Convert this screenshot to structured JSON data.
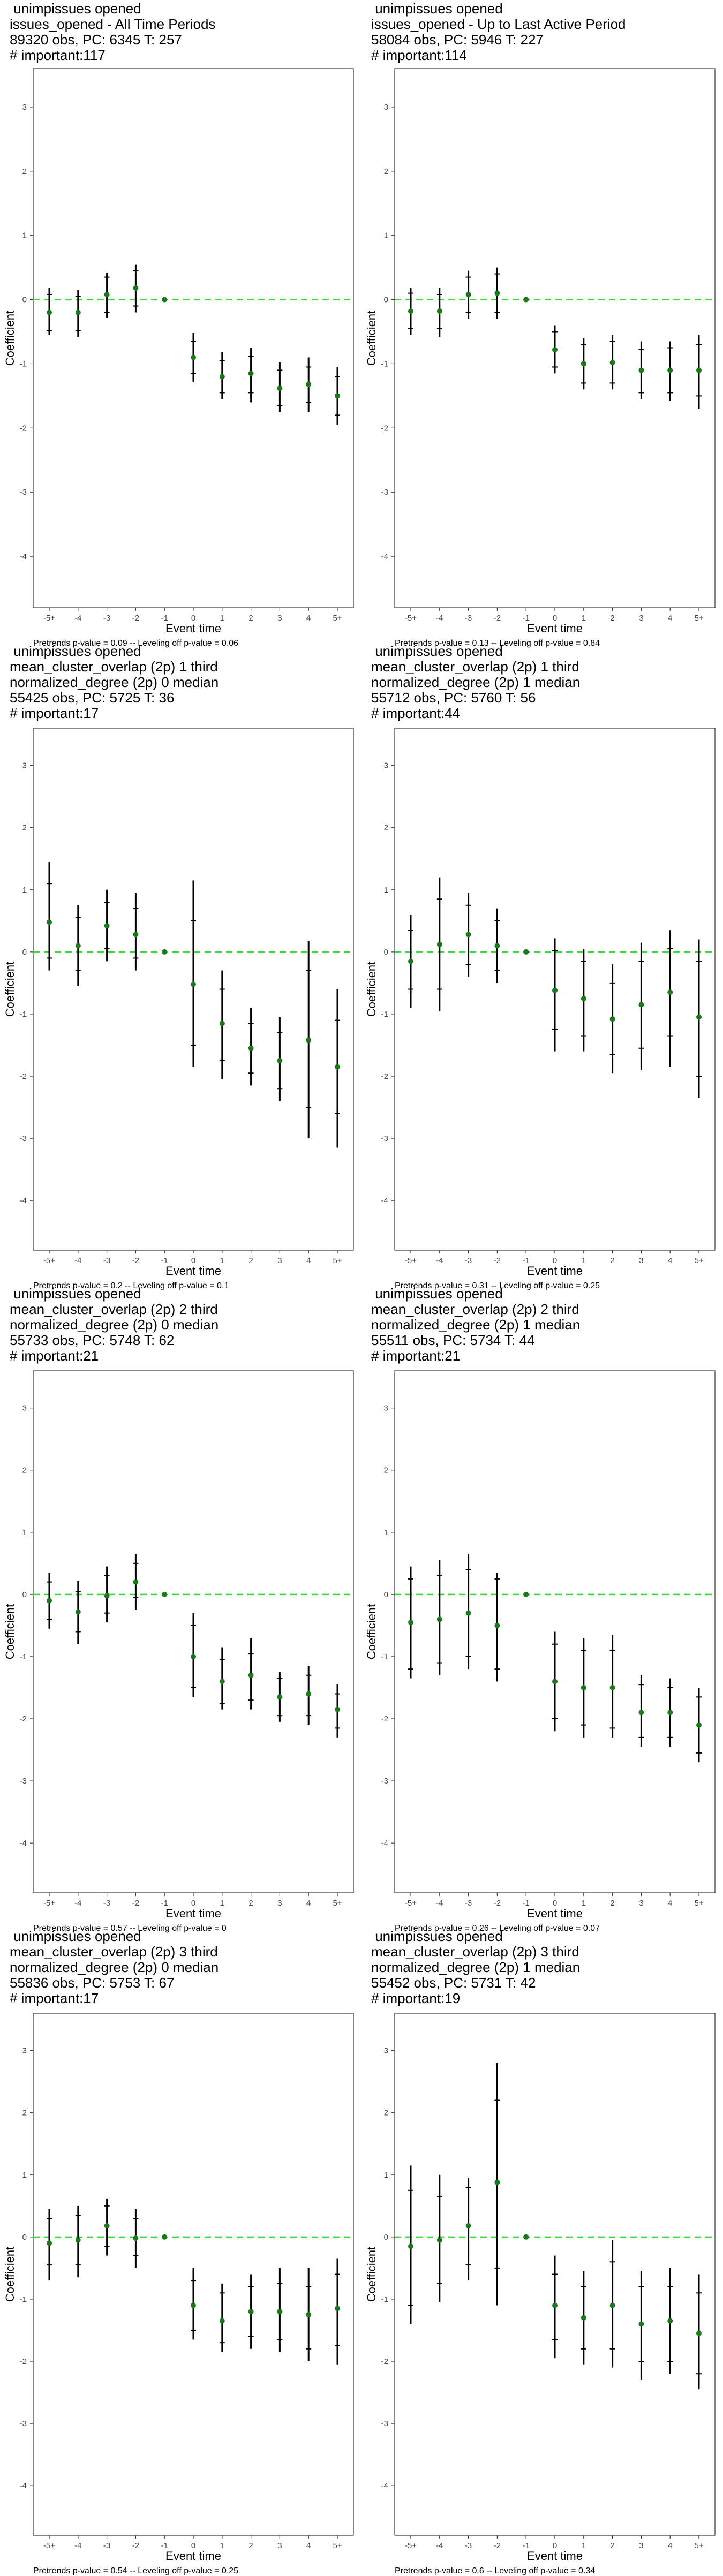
{
  "y_axis_label": "Coefficient",
  "x_axis_label": "Event time",
  "x_tick_labels": [
    "-5+",
    "-4",
    "-3",
    "-2",
    "-1",
    "0",
    "1",
    "2",
    "3",
    "4",
    "5+"
  ],
  "y_tick_labels": [
    "-4",
    "-3",
    "-2",
    "-1",
    "0",
    "1",
    "2",
    "3"
  ],
  "colors": {
    "point": "#1a7a1a",
    "reference_line": "#33dd33",
    "error_bar": "#000000",
    "frame": "#333333"
  },
  "chart_data": [
    {
      "type": "scatter",
      "title_lines": [
        " unimpissues opened",
        "issues_opened - All Time Periods",
        "89320 obs, PC: 6345 T: 257",
        "# important:117"
      ],
      "caption": "Pretrends p-value = 0.09 -- Leveling off p-value = 0.06",
      "xlabel": "Event time",
      "ylabel": "Coefficient",
      "ylim": [
        -4.8,
        3.6
      ],
      "categories": [
        "-5+",
        "-4",
        "-3",
        "-2",
        "-1",
        "0",
        "1",
        "2",
        "3",
        "4",
        "5+"
      ],
      "values": [
        -0.2,
        -0.2,
        0.08,
        0.18,
        0,
        -0.9,
        -1.2,
        -1.15,
        -1.38,
        -1.32,
        -1.5
      ],
      "ci_inner": [
        [
          -0.48,
          0.08
        ],
        [
          -0.48,
          0.05
        ],
        [
          -0.2,
          0.35
        ],
        [
          -0.1,
          0.45
        ],
        [
          0,
          0
        ],
        [
          -1.15,
          -0.65
        ],
        [
          -1.45,
          -0.95
        ],
        [
          -1.45,
          -0.88
        ],
        [
          -1.65,
          -1.1
        ],
        [
          -1.6,
          -1.05
        ],
        [
          -1.8,
          -1.2
        ]
      ],
      "ci_outer": [
        [
          -0.55,
          0.18
        ],
        [
          -0.58,
          0.15
        ],
        [
          -0.28,
          0.42
        ],
        [
          -0.2,
          0.55
        ],
        [
          0,
          0
        ],
        [
          -1.28,
          -0.52
        ],
        [
          -1.55,
          -0.82
        ],
        [
          -1.6,
          -0.75
        ],
        [
          -1.75,
          -0.98
        ],
        [
          -1.75,
          -0.9
        ],
        [
          -1.95,
          -1.05
        ]
      ]
    },
    {
      "type": "scatter",
      "title_lines": [
        " unimpissues opened",
        "issues_opened - Up to Last Active Period",
        "58084 obs, PC: 5946 T: 227",
        "# important:114"
      ],
      "caption": "Pretrends p-value = 0.13 -- Leveling off p-value = 0.84",
      "xlabel": "Event time",
      "ylabel": "Coefficient",
      "ylim": [
        -4.8,
        3.6
      ],
      "categories": [
        "-5+",
        "-4",
        "-3",
        "-2",
        "-1",
        "0",
        "1",
        "2",
        "3",
        "4",
        "5+"
      ],
      "values": [
        -0.18,
        -0.18,
        0.08,
        0.1,
        0,
        -0.78,
        -1.0,
        -0.98,
        -1.1,
        -1.1,
        -1.1
      ],
      "ci_inner": [
        [
          -0.45,
          0.1
        ],
        [
          -0.45,
          0.08
        ],
        [
          -0.2,
          0.35
        ],
        [
          -0.2,
          0.4
        ],
        [
          0,
          0
        ],
        [
          -1.05,
          -0.5
        ],
        [
          -1.3,
          -0.7
        ],
        [
          -1.3,
          -0.65
        ],
        [
          -1.45,
          -0.78
        ],
        [
          -1.45,
          -0.75
        ],
        [
          -1.5,
          -0.7
        ]
      ],
      "ci_outer": [
        [
          -0.55,
          0.18
        ],
        [
          -0.58,
          0.18
        ],
        [
          -0.3,
          0.45
        ],
        [
          -0.3,
          0.5
        ],
        [
          0,
          0
        ],
        [
          -1.15,
          -0.4
        ],
        [
          -1.4,
          -0.6
        ],
        [
          -1.4,
          -0.55
        ],
        [
          -1.55,
          -0.65
        ],
        [
          -1.58,
          -0.65
        ],
        [
          -1.7,
          -0.55
        ]
      ]
    },
    {
      "type": "scatter",
      "title_lines": [
        " unimpissues opened",
        "mean_cluster_overlap (2p) 1 third",
        "normalized_degree (2p) 0 median",
        "55425 obs, PC: 5725 T: 36",
        "# important:17"
      ],
      "caption": "Pretrends p-value = 0.2 -- Leveling off p-value = 0.1",
      "xlabel": "Event time",
      "ylabel": "Coefficient",
      "ylim": [
        -4.8,
        3.6
      ],
      "categories": [
        "-5+",
        "-4",
        "-3",
        "-2",
        "-1",
        "0",
        "1",
        "2",
        "3",
        "4",
        "5+"
      ],
      "values": [
        0.48,
        0.1,
        0.42,
        0.28,
        0,
        -0.52,
        -1.15,
        -1.55,
        -1.75,
        -1.42,
        -1.85
      ],
      "ci_inner": [
        [
          -0.1,
          1.1
        ],
        [
          -0.3,
          0.55
        ],
        [
          0.05,
          0.8
        ],
        [
          -0.1,
          0.7
        ],
        [
          0,
          0
        ],
        [
          -1.5,
          0.5
        ],
        [
          -1.75,
          -0.6
        ],
        [
          -1.95,
          -1.15
        ],
        [
          -2.2,
          -1.3
        ],
        [
          -2.5,
          -0.3
        ],
        [
          -2.6,
          -1.1
        ]
      ],
      "ci_outer": [
        [
          -0.3,
          1.45
        ],
        [
          -0.55,
          0.75
        ],
        [
          -0.15,
          1.0
        ],
        [
          -0.3,
          0.95
        ],
        [
          0,
          0
        ],
        [
          -1.85,
          1.15
        ],
        [
          -2.05,
          -0.3
        ],
        [
          -2.15,
          -0.9
        ],
        [
          -2.4,
          -1.05
        ],
        [
          -3.0,
          0.18
        ],
        [
          -3.15,
          -0.6
        ]
      ]
    },
    {
      "type": "scatter",
      "title_lines": [
        " unimpissues opened",
        "mean_cluster_overlap (2p) 1 third",
        "normalized_degree (2p) 1 median",
        "55712 obs, PC: 5760 T: 56",
        "# important:44"
      ],
      "caption": "Pretrends p-value = 0.31 -- Leveling off p-value = 0.25",
      "xlabel": "Event time",
      "ylabel": "Coefficient",
      "ylim": [
        -4.8,
        3.6
      ],
      "categories": [
        "-5+",
        "-4",
        "-3",
        "-2",
        "-1",
        "0",
        "1",
        "2",
        "3",
        "4",
        "5+"
      ],
      "values": [
        -0.15,
        0.12,
        0.28,
        0.1,
        0,
        -0.62,
        -0.75,
        -1.08,
        -0.85,
        -0.65,
        -1.05
      ],
      "ci_inner": [
        [
          -0.6,
          0.35
        ],
        [
          -0.6,
          0.85
        ],
        [
          -0.2,
          0.75
        ],
        [
          -0.3,
          0.5
        ],
        [
          0,
          0
        ],
        [
          -1.25,
          0.02
        ],
        [
          -1.35,
          -0.15
        ],
        [
          -1.65,
          -0.5
        ],
        [
          -1.55,
          -0.15
        ],
        [
          -1.35,
          0.05
        ],
        [
          -2.0,
          -0.15
        ]
      ],
      "ci_outer": [
        [
          -0.9,
          0.6
        ],
        [
          -0.95,
          1.2
        ],
        [
          -0.4,
          0.95
        ],
        [
          -0.5,
          0.7
        ],
        [
          0,
          0
        ],
        [
          -1.6,
          0.22
        ],
        [
          -1.6,
          0.05
        ],
        [
          -1.95,
          -0.2
        ],
        [
          -1.9,
          0.15
        ],
        [
          -1.85,
          0.35
        ],
        [
          -2.35,
          0.2
        ]
      ]
    },
    {
      "type": "scatter",
      "title_lines": [
        " unimpissues opened",
        "mean_cluster_overlap (2p) 2 third",
        "normalized_degree (2p) 0 median",
        "55733 obs, PC: 5748 T: 62",
        "# important:21"
      ],
      "caption": "Pretrends p-value = 0.57 -- Leveling off p-value = 0",
      "xlabel": "Event time",
      "ylabel": "Coefficient",
      "ylim": [
        -4.8,
        3.6
      ],
      "categories": [
        "-5+",
        "-4",
        "-3",
        "-2",
        "-1",
        "0",
        "1",
        "2",
        "3",
        "4",
        "5+"
      ],
      "values": [
        -0.1,
        -0.28,
        -0.02,
        0.2,
        0,
        -1.0,
        -1.4,
        -1.3,
        -1.65,
        -1.6,
        -1.85
      ],
      "ci_inner": [
        [
          -0.4,
          0.2
        ],
        [
          -0.6,
          0.05
        ],
        [
          -0.3,
          0.3
        ],
        [
          -0.05,
          0.5
        ],
        [
          0,
          0
        ],
        [
          -1.5,
          -0.5
        ],
        [
          -1.75,
          -1.05
        ],
        [
          -1.7,
          -0.95
        ],
        [
          -1.95,
          -1.35
        ],
        [
          -1.95,
          -1.3
        ],
        [
          -2.15,
          -1.6
        ]
      ],
      "ci_outer": [
        [
          -0.55,
          0.35
        ],
        [
          -0.8,
          0.22
        ],
        [
          -0.45,
          0.45
        ],
        [
          -0.25,
          0.65
        ],
        [
          0,
          0
        ],
        [
          -1.65,
          -0.3
        ],
        [
          -1.85,
          -0.85
        ],
        [
          -1.85,
          -0.7
        ],
        [
          -2.05,
          -1.25
        ],
        [
          -2.1,
          -1.15
        ],
        [
          -2.3,
          -1.45
        ]
      ]
    },
    {
      "type": "scatter",
      "title_lines": [
        " unimpissues opened",
        "mean_cluster_overlap (2p) 2 third",
        "normalized_degree (2p) 1 median",
        "55511 obs, PC: 5734 T: 44",
        "# important:21"
      ],
      "caption": "Pretrends p-value = 0.26 -- Leveling off p-value = 0.07",
      "xlabel": "Event time",
      "ylabel": "Coefficient",
      "ylim": [
        -4.8,
        3.6
      ],
      "categories": [
        "-5+",
        "-4",
        "-3",
        "-2",
        "-1",
        "0",
        "1",
        "2",
        "3",
        "4",
        "5+"
      ],
      "values": [
        -0.45,
        -0.4,
        -0.3,
        -0.5,
        0,
        -1.4,
        -1.5,
        -1.5,
        -1.9,
        -1.9,
        -2.1
      ],
      "ci_inner": [
        [
          -1.2,
          0.25
        ],
        [
          -1.1,
          0.3
        ],
        [
          -1.0,
          0.4
        ],
        [
          -1.2,
          0.25
        ],
        [
          0,
          0
        ],
        [
          -2.0,
          -0.8
        ],
        [
          -2.1,
          -0.9
        ],
        [
          -2.15,
          -0.9
        ],
        [
          -2.3,
          -1.45
        ],
        [
          -2.3,
          -1.5
        ],
        [
          -2.55,
          -1.65
        ]
      ],
      "ci_outer": [
        [
          -1.35,
          0.45
        ],
        [
          -1.3,
          0.55
        ],
        [
          -1.2,
          0.65
        ],
        [
          -1.4,
          0.35
        ],
        [
          0,
          0
        ],
        [
          -2.2,
          -0.6
        ],
        [
          -2.3,
          -0.7
        ],
        [
          -2.3,
          -0.65
        ],
        [
          -2.45,
          -1.3
        ],
        [
          -2.45,
          -1.35
        ],
        [
          -2.7,
          -1.5
        ]
      ]
    },
    {
      "type": "scatter",
      "title_lines": [
        " unimpissues opened",
        "mean_cluster_overlap (2p) 3 third",
        "normalized_degree (2p) 0 median",
        "55836 obs, PC: 5753 T: 67",
        "# important:17"
      ],
      "caption": "Pretrends p-value = 0.54 -- Leveling off p-value = 0.25",
      "xlabel": "Event time",
      "ylabel": "Coefficient",
      "ylim": [
        -4.8,
        3.6
      ],
      "categories": [
        "-5+",
        "-4",
        "-3",
        "-2",
        "-1",
        "0",
        "1",
        "2",
        "3",
        "4",
        "5+"
      ],
      "values": [
        -0.1,
        -0.05,
        0.18,
        -0.02,
        0,
        -1.1,
        -1.35,
        -1.2,
        -1.2,
        -1.25,
        -1.15
      ],
      "ci_inner": [
        [
          -0.45,
          0.3
        ],
        [
          -0.45,
          0.35
        ],
        [
          -0.15,
          0.5
        ],
        [
          -0.3,
          0.3
        ],
        [
          0,
          0
        ],
        [
          -1.5,
          -0.7
        ],
        [
          -1.7,
          -0.9
        ],
        [
          -1.6,
          -0.8
        ],
        [
          -1.65,
          -0.75
        ],
        [
          -1.8,
          -0.8
        ],
        [
          -1.75,
          -0.6
        ]
      ],
      "ci_outer": [
        [
          -0.7,
          0.45
        ],
        [
          -0.65,
          0.5
        ],
        [
          -0.3,
          0.62
        ],
        [
          -0.5,
          0.45
        ],
        [
          0,
          0
        ],
        [
          -1.65,
          -0.5
        ],
        [
          -1.85,
          -0.75
        ],
        [
          -1.8,
          -0.6
        ],
        [
          -1.85,
          -0.5
        ],
        [
          -2.0,
          -0.5
        ],
        [
          -2.05,
          -0.35
        ]
      ]
    },
    {
      "type": "scatter",
      "title_lines": [
        " unimpissues opened",
        "mean_cluster_overlap (2p) 3 third",
        "normalized_degree (2p) 1 median",
        "55452 obs, PC: 5731 T: 42",
        "# important:19"
      ],
      "caption": "Pretrends p-value = 0.6 -- Leveling off p-value = 0.34",
      "xlabel": "Event time",
      "ylabel": "Coefficient",
      "ylim": [
        -4.8,
        3.6
      ],
      "categories": [
        "-5+",
        "-4",
        "-3",
        "-2",
        "-1",
        "0",
        "1",
        "2",
        "3",
        "4",
        "5+"
      ],
      "values": [
        -0.15,
        -0.05,
        0.18,
        0.88,
        0,
        -1.1,
        -1.3,
        -1.1,
        -1.4,
        -1.35,
        -1.55
      ],
      "ci_inner": [
        [
          -1.1,
          0.75
        ],
        [
          -0.75,
          0.65
        ],
        [
          -0.45,
          0.8
        ],
        [
          -0.5,
          2.2
        ],
        [
          0,
          0
        ],
        [
          -1.65,
          -0.6
        ],
        [
          -1.8,
          -0.8
        ],
        [
          -1.8,
          -0.4
        ],
        [
          -2.0,
          -0.8
        ],
        [
          -2.0,
          -0.8
        ],
        [
          -2.2,
          -0.9
        ]
      ],
      "ci_outer": [
        [
          -1.4,
          1.15
        ],
        [
          -1.05,
          1.0
        ],
        [
          -0.7,
          0.95
        ],
        [
          -1.1,
          2.8
        ],
        [
          0,
          0
        ],
        [
          -1.95,
          -0.3
        ],
        [
          -2.05,
          -0.55
        ],
        [
          -2.1,
          -0.05
        ],
        [
          -2.3,
          -0.55
        ],
        [
          -2.2,
          -0.5
        ],
        [
          -2.45,
          -0.6
        ]
      ]
    }
  ]
}
